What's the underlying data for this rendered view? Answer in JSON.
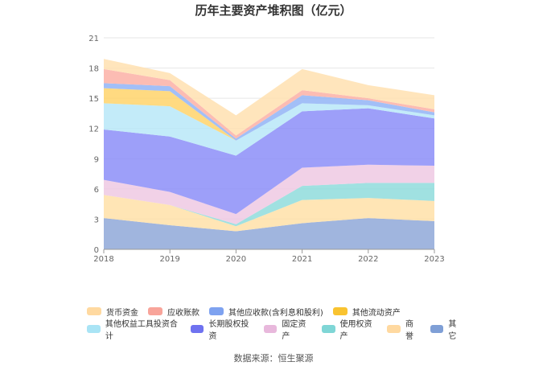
{
  "chart_data": {
    "type": "area",
    "stacked": true,
    "title": "历年主要资产堆积图（亿元）",
    "x": [
      "2018",
      "2019",
      "2020",
      "2021",
      "2022",
      "2023"
    ],
    "ylim": [
      0,
      21
    ],
    "yticks": [
      0,
      3,
      6,
      9,
      12,
      15,
      18,
      21
    ],
    "grid": true,
    "legend_position": "bottom",
    "series": [
      {
        "name": "其它",
        "color": "#8fa8d8",
        "values": [
          3.1,
          2.4,
          1.8,
          2.6,
          3.1,
          2.8
        ]
      },
      {
        "name": "商誉",
        "color": "#ffe1a8",
        "values": [
          2.3,
          2.0,
          0.5,
          2.3,
          2.0,
          2.0
        ]
      },
      {
        "name": "使用权资产",
        "color": "#8fdcdc",
        "values": [
          0,
          0,
          0.2,
          1.4,
          1.5,
          1.8
        ]
      },
      {
        "name": "固定资产",
        "color": "#efc9e3",
        "values": [
          1.5,
          1.3,
          1.0,
          1.8,
          1.8,
          1.7
        ]
      },
      {
        "name": "长期股权投资",
        "color": "#8c8ef8",
        "values": [
          5.0,
          5.5,
          5.8,
          5.6,
          5.6,
          4.7
        ]
      },
      {
        "name": "其他权益工具投资合计",
        "color": "#b8e8f8",
        "values": [
          2.6,
          3.0,
          1.5,
          0.8,
          0.3,
          0.3
        ]
      },
      {
        "name": "其他流动资产",
        "color": "#ffd36b",
        "values": [
          1.5,
          1.5,
          0,
          0,
          0,
          0
        ]
      },
      {
        "name": "其他应收款(含利息和股利)",
        "color": "#92b4f6",
        "values": [
          0.5,
          0.5,
          0.2,
          0.8,
          0.5,
          0.3
        ]
      },
      {
        "name": "应收账款",
        "color": "#fbb0a6",
        "values": [
          1.4,
          0.6,
          0.3,
          0.5,
          0.2,
          0.3
        ]
      },
      {
        "name": "货币资金",
        "color": "#ffe1b0",
        "values": [
          1.0,
          0.7,
          2.0,
          2.1,
          1.3,
          1.4
        ]
      }
    ],
    "legend_order": [
      "货币资金",
      "应收账款",
      "其他应收款(含利息和股利)",
      "其他流动资产",
      "其他权益工具投资合计",
      "长期股权投资",
      "固定资产",
      "使用权资产",
      "商誉",
      "其它"
    ],
    "legend_colors": {
      "货币资金": "#ffd9a0",
      "应收账款": "#f8a49a",
      "其他应收款(含利息和股利)": "#7ea2f0",
      "其他流动资产": "#f9c330",
      "其他权益工具投资合计": "#a9e4f5",
      "长期股权投资": "#6f72f0",
      "固定资产": "#e8b8dc",
      "使用权资产": "#7fd6d6",
      "商誉": "#ffd9a0",
      "其它": "#7f9fd6"
    }
  },
  "source": "数据来源：恒生聚源"
}
